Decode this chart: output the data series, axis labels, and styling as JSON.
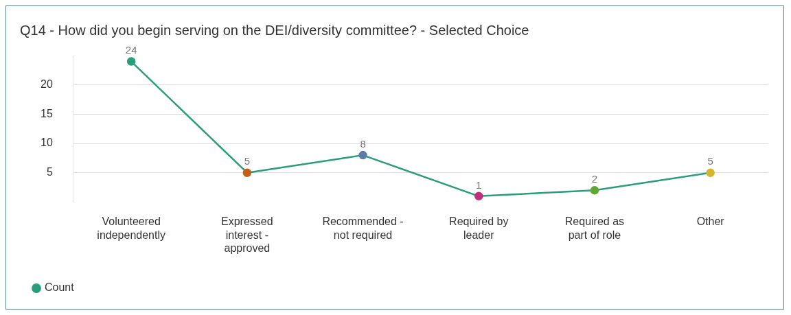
{
  "chart_data": {
    "type": "line",
    "title": "Q14 - How did you begin serving on the DEI/diversity committee? - Selected Choice",
    "categories": [
      "Volunteered independently",
      "Expressed interest - approved",
      "Recommended - not required",
      "Required by leader",
      "Required as part of role",
      "Other"
    ],
    "series": [
      {
        "name": "Count",
        "color": "#2a9d7c",
        "colors": [
          "#2a9d7c",
          "#c0601b",
          "#5b7ea6",
          "#c0307a",
          "#5ea832",
          "#d4b62a"
        ],
        "values": [
          24,
          5,
          8,
          1,
          2,
          5
        ]
      }
    ],
    "ylim": [
      0,
      25
    ],
    "yticks": [
      5,
      10,
      15,
      20
    ],
    "grid": "y",
    "legend": "bottom left",
    "marker": "circle",
    "line_style": "solid",
    "data_labels": true
  }
}
